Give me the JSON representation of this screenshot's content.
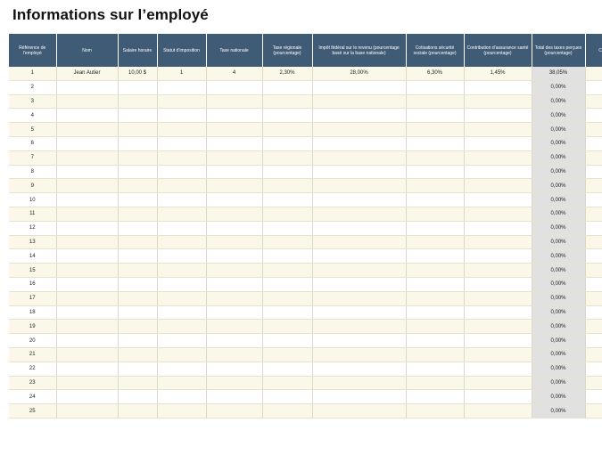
{
  "title": "Informations sur l’employé",
  "table": {
    "headers": [
      "Référence de l’employé",
      "Nom",
      "Salaire horaire",
      "Statut d’imposition",
      "Taxe nationale",
      "Taxe régionale (pourcentage)",
      "Impôt fédéral sur le revenu (pourcentage basé sur la base nationale)",
      "Cotisations sécurité sociale (pourcentage)",
      "Contribution d’assurance santé (pourcentage)",
      "Total des taxes perçues (pourcentage)",
      "C"
    ],
    "rows": [
      [
        "1",
        "Jean Autier",
        "10,00 $",
        "1",
        "4",
        "2,30%",
        "28,00%",
        "6,30%",
        "1,45%",
        "38,05%",
        ""
      ],
      [
        "2",
        "",
        "",
        "",
        "",
        "",
        "",
        "",
        "",
        "0,00%",
        ""
      ],
      [
        "3",
        "",
        "",
        "",
        "",
        "",
        "",
        "",
        "",
        "0,00%",
        ""
      ],
      [
        "4",
        "",
        "",
        "",
        "",
        "",
        "",
        "",
        "",
        "0,00%",
        ""
      ],
      [
        "5",
        "",
        "",
        "",
        "",
        "",
        "",
        "",
        "",
        "0,00%",
        ""
      ],
      [
        "6",
        "",
        "",
        "",
        "",
        "",
        "",
        "",
        "",
        "0,00%",
        ""
      ],
      [
        "7",
        "",
        "",
        "",
        "",
        "",
        "",
        "",
        "",
        "0,00%",
        ""
      ],
      [
        "8",
        "",
        "",
        "",
        "",
        "",
        "",
        "",
        "",
        "0,00%",
        ""
      ],
      [
        "9",
        "",
        "",
        "",
        "",
        "",
        "",
        "",
        "",
        "0,00%",
        ""
      ],
      [
        "10",
        "",
        "",
        "",
        "",
        "",
        "",
        "",
        "",
        "0,00%",
        ""
      ],
      [
        "11",
        "",
        "",
        "",
        "",
        "",
        "",
        "",
        "",
        "0,00%",
        ""
      ],
      [
        "12",
        "",
        "",
        "",
        "",
        "",
        "",
        "",
        "",
        "0,00%",
        ""
      ],
      [
        "13",
        "",
        "",
        "",
        "",
        "",
        "",
        "",
        "",
        "0,00%",
        ""
      ],
      [
        "14",
        "",
        "",
        "",
        "",
        "",
        "",
        "",
        "",
        "0,00%",
        ""
      ],
      [
        "15",
        "",
        "",
        "",
        "",
        "",
        "",
        "",
        "",
        "0,00%",
        ""
      ],
      [
        "16",
        "",
        "",
        "",
        "",
        "",
        "",
        "",
        "",
        "0,00%",
        ""
      ],
      [
        "17",
        "",
        "",
        "",
        "",
        "",
        "",
        "",
        "",
        "0,00%",
        ""
      ],
      [
        "18",
        "",
        "",
        "",
        "",
        "",
        "",
        "",
        "",
        "0,00%",
        ""
      ],
      [
        "19",
        "",
        "",
        "",
        "",
        "",
        "",
        "",
        "",
        "0,00%",
        ""
      ],
      [
        "20",
        "",
        "",
        "",
        "",
        "",
        "",
        "",
        "",
        "0,00%",
        ""
      ],
      [
        "21",
        "",
        "",
        "",
        "",
        "",
        "",
        "",
        "",
        "0,00%",
        ""
      ],
      [
        "22",
        "",
        "",
        "",
        "",
        "",
        "",
        "",
        "",
        "0,00%",
        ""
      ],
      [
        "23",
        "",
        "",
        "",
        "",
        "",
        "",
        "",
        "",
        "0,00%",
        ""
      ],
      [
        "24",
        "",
        "",
        "",
        "",
        "",
        "",
        "",
        "",
        "0,00%",
        ""
      ],
      [
        "25",
        "",
        "",
        "",
        "",
        "",
        "",
        "",
        "",
        "0,00%",
        ""
      ]
    ]
  },
  "colors": {
    "header_bg": "#3f5b76",
    "row_band": "#fbf8ea",
    "total_col": "#e1e1e1"
  }
}
